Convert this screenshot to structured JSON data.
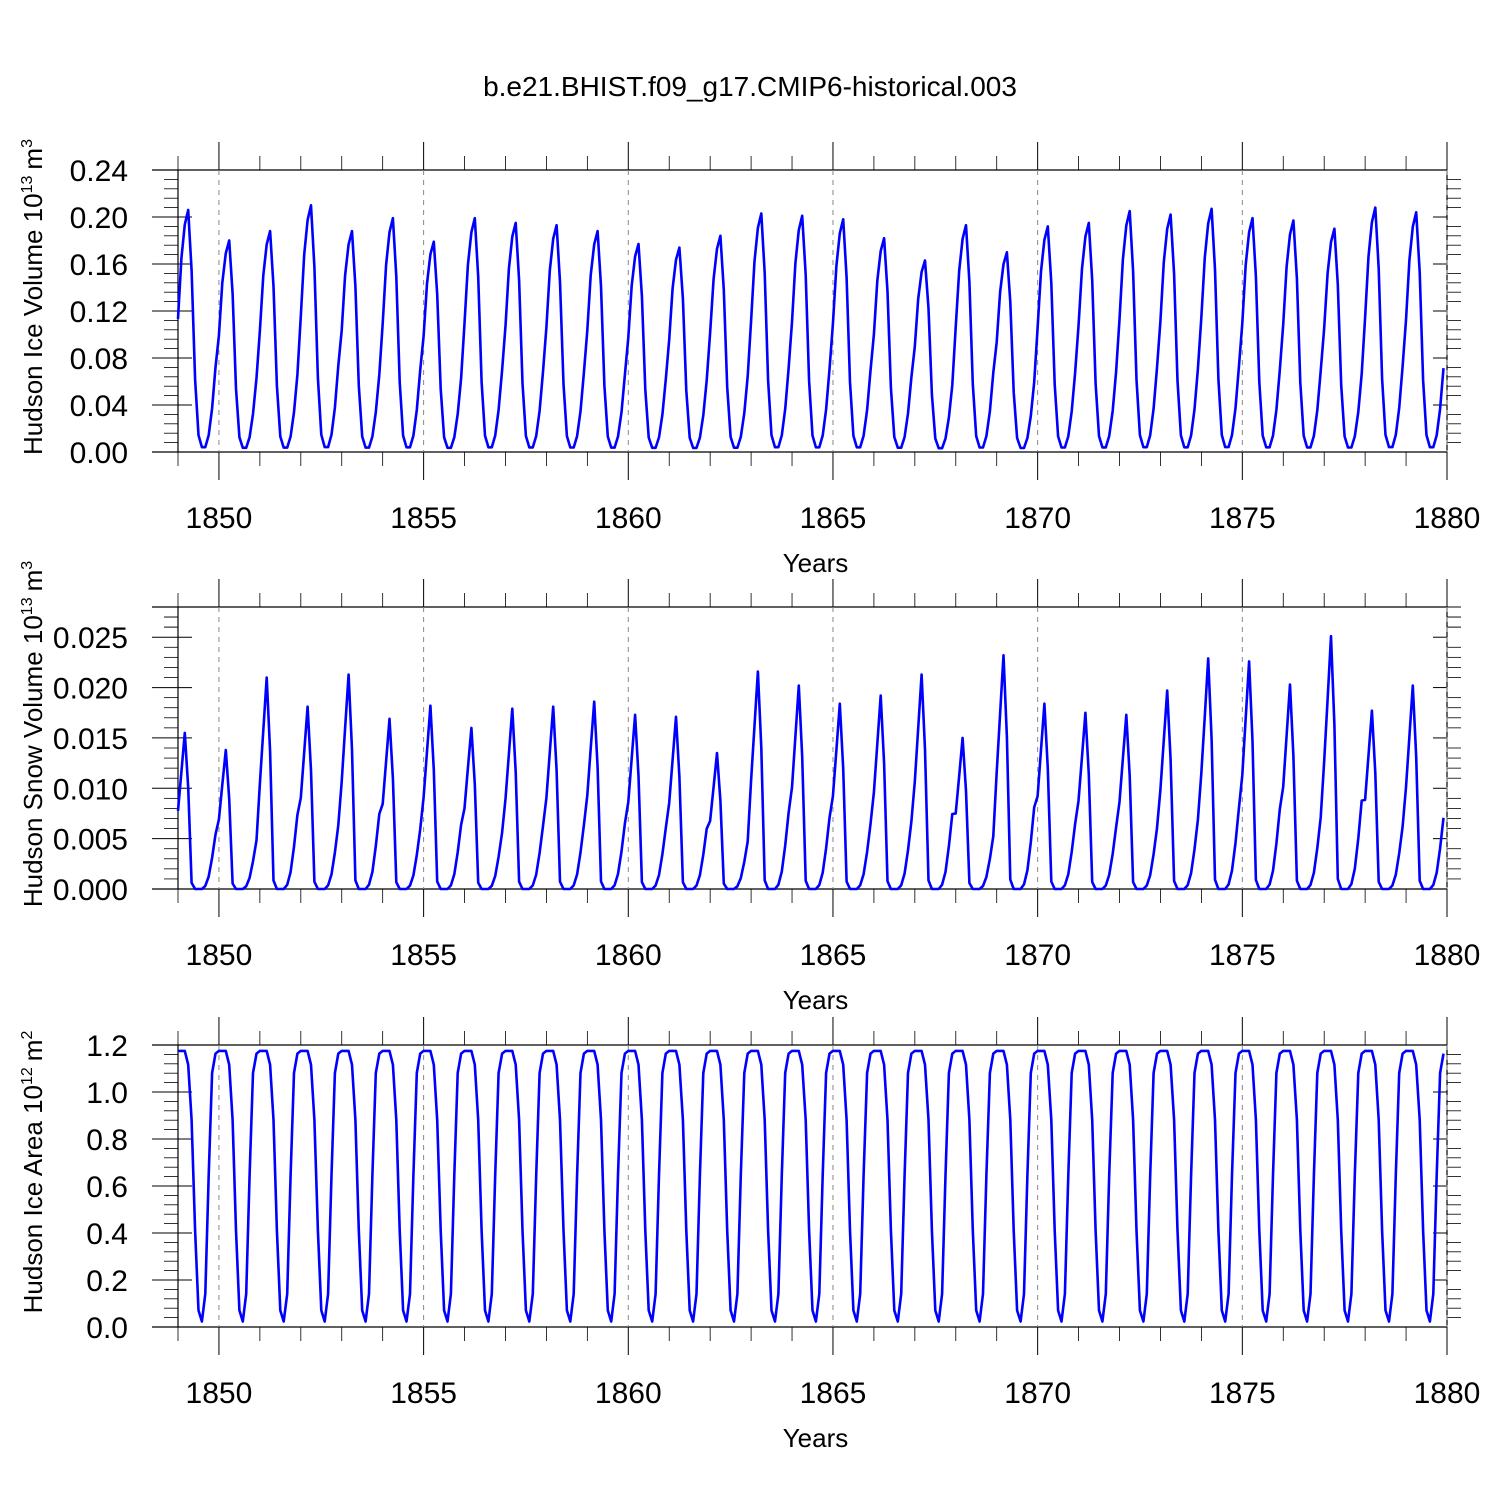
{
  "title": "b.e21.BHIST.f09_g17.CMIP6-historical.003",
  "colors": {
    "series": "#0000ff",
    "axis": "#000000",
    "gridline": "#888888"
  },
  "chart_data": [
    {
      "type": "line",
      "ylabel": "Hudson Ice Volume 10",
      "ylabel_exp": "13",
      "ylabel_unit": "m",
      "ylabel_unit_exp": "3",
      "xlabel": "Years",
      "xlim": [
        1849,
        1880
      ],
      "ylim": [
        0,
        0.24
      ],
      "yticks": [
        "0.00",
        "0.04",
        "0.08",
        "0.12",
        "0.16",
        "0.20",
        "0.24"
      ],
      "xticks": [
        "1850",
        "1855",
        "1860",
        "1865",
        "1870",
        "1875",
        "1880"
      ],
      "x_start": 1849.0,
      "x_step": 0.08333,
      "annual_peaks": [
        0.206,
        0.18,
        0.188,
        0.21,
        0.188,
        0.199,
        0.179,
        0.199,
        0.195,
        0.193,
        0.188,
        0.177,
        0.174,
        0.184,
        0.203,
        0.201,
        0.198,
        0.182,
        0.163,
        0.193,
        0.17,
        0.192,
        0.195,
        0.205,
        0.202,
        0.207,
        0.199,
        0.197,
        0.19,
        0.208,
        0.204
      ],
      "monthly_shape": [
        0.55,
        0.8,
        0.94,
        1.0,
        0.75,
        0.3,
        0.07,
        0.02,
        0.02,
        0.07,
        0.18,
        0.35
      ],
      "series": [
        {
          "values": []
        }
      ]
    },
    {
      "type": "line",
      "ylabel": "Hudson Snow Volume 10",
      "ylabel_exp": "13",
      "ylabel_unit": "m",
      "ylabel_unit_exp": "3",
      "xlabel": "Years",
      "xlim": [
        1849,
        1880
      ],
      "ylim": [
        0,
        0.028
      ],
      "yticks": [
        "0.000",
        "0.005",
        "0.010",
        "0.015",
        "0.020",
        "0.025"
      ],
      "ytick_values": [
        0,
        0.005,
        0.01,
        0.015,
        0.02,
        0.025
      ],
      "xticks": [
        "1850",
        "1855",
        "1860",
        "1865",
        "1870",
        "1875",
        "1880"
      ],
      "x_start": 1849.0,
      "x_step": 0.08333,
      "annual_peaks": [
        0.0155,
        0.0138,
        0.021,
        0.0181,
        0.0213,
        0.0169,
        0.0182,
        0.016,
        0.0179,
        0.0181,
        0.0186,
        0.0173,
        0.0171,
        0.0135,
        0.0216,
        0.0202,
        0.0184,
        0.0192,
        0.0213,
        0.015,
        0.0232,
        0.0184,
        0.0175,
        0.0173,
        0.0197,
        0.0229,
        0.0226,
        0.0203,
        0.0251,
        0.0177,
        0.0202
      ],
      "monthly_shape": [
        0.5,
        0.75,
        1.0,
        0.65,
        0.04,
        0.0,
        0.0,
        0.0,
        0.02,
        0.08,
        0.2,
        0.35
      ],
      "series": [
        {
          "values": []
        }
      ]
    },
    {
      "type": "line",
      "ylabel": "Hudson Ice Area 10",
      "ylabel_exp": "12",
      "ylabel_unit": "m",
      "ylabel_unit_exp": "2",
      "xlabel": "Years",
      "xlim": [
        1849,
        1880
      ],
      "ylim": [
        0,
        1.2
      ],
      "yticks": [
        "0.0",
        "0.2",
        "0.4",
        "0.6",
        "0.8",
        "1.0",
        "1.2"
      ],
      "ytick_values": [
        0,
        0.2,
        0.4,
        0.6,
        0.8,
        1.0,
        1.2
      ],
      "xticks": [
        "1850",
        "1855",
        "1860",
        "1865",
        "1870",
        "1875",
        "1880"
      ],
      "x_start": 1849.0,
      "x_step": 0.08333,
      "annual_peaks": [
        1.175,
        1.175,
        1.175,
        1.175,
        1.175,
        1.175,
        1.175,
        1.175,
        1.175,
        1.175,
        1.175,
        1.175,
        1.175,
        1.175,
        1.175,
        1.175,
        1.175,
        1.175,
        1.175,
        1.175,
        1.175,
        1.175,
        1.175,
        1.175,
        1.175,
        1.175,
        1.175,
        1.175,
        1.175,
        1.175,
        1.175
      ],
      "monthly_shape": [
        1.0,
        1.0,
        1.0,
        0.95,
        0.75,
        0.35,
        0.06,
        0.02,
        0.12,
        0.55,
        0.92,
        0.99
      ],
      "series": [
        {
          "values": []
        }
      ]
    }
  ]
}
